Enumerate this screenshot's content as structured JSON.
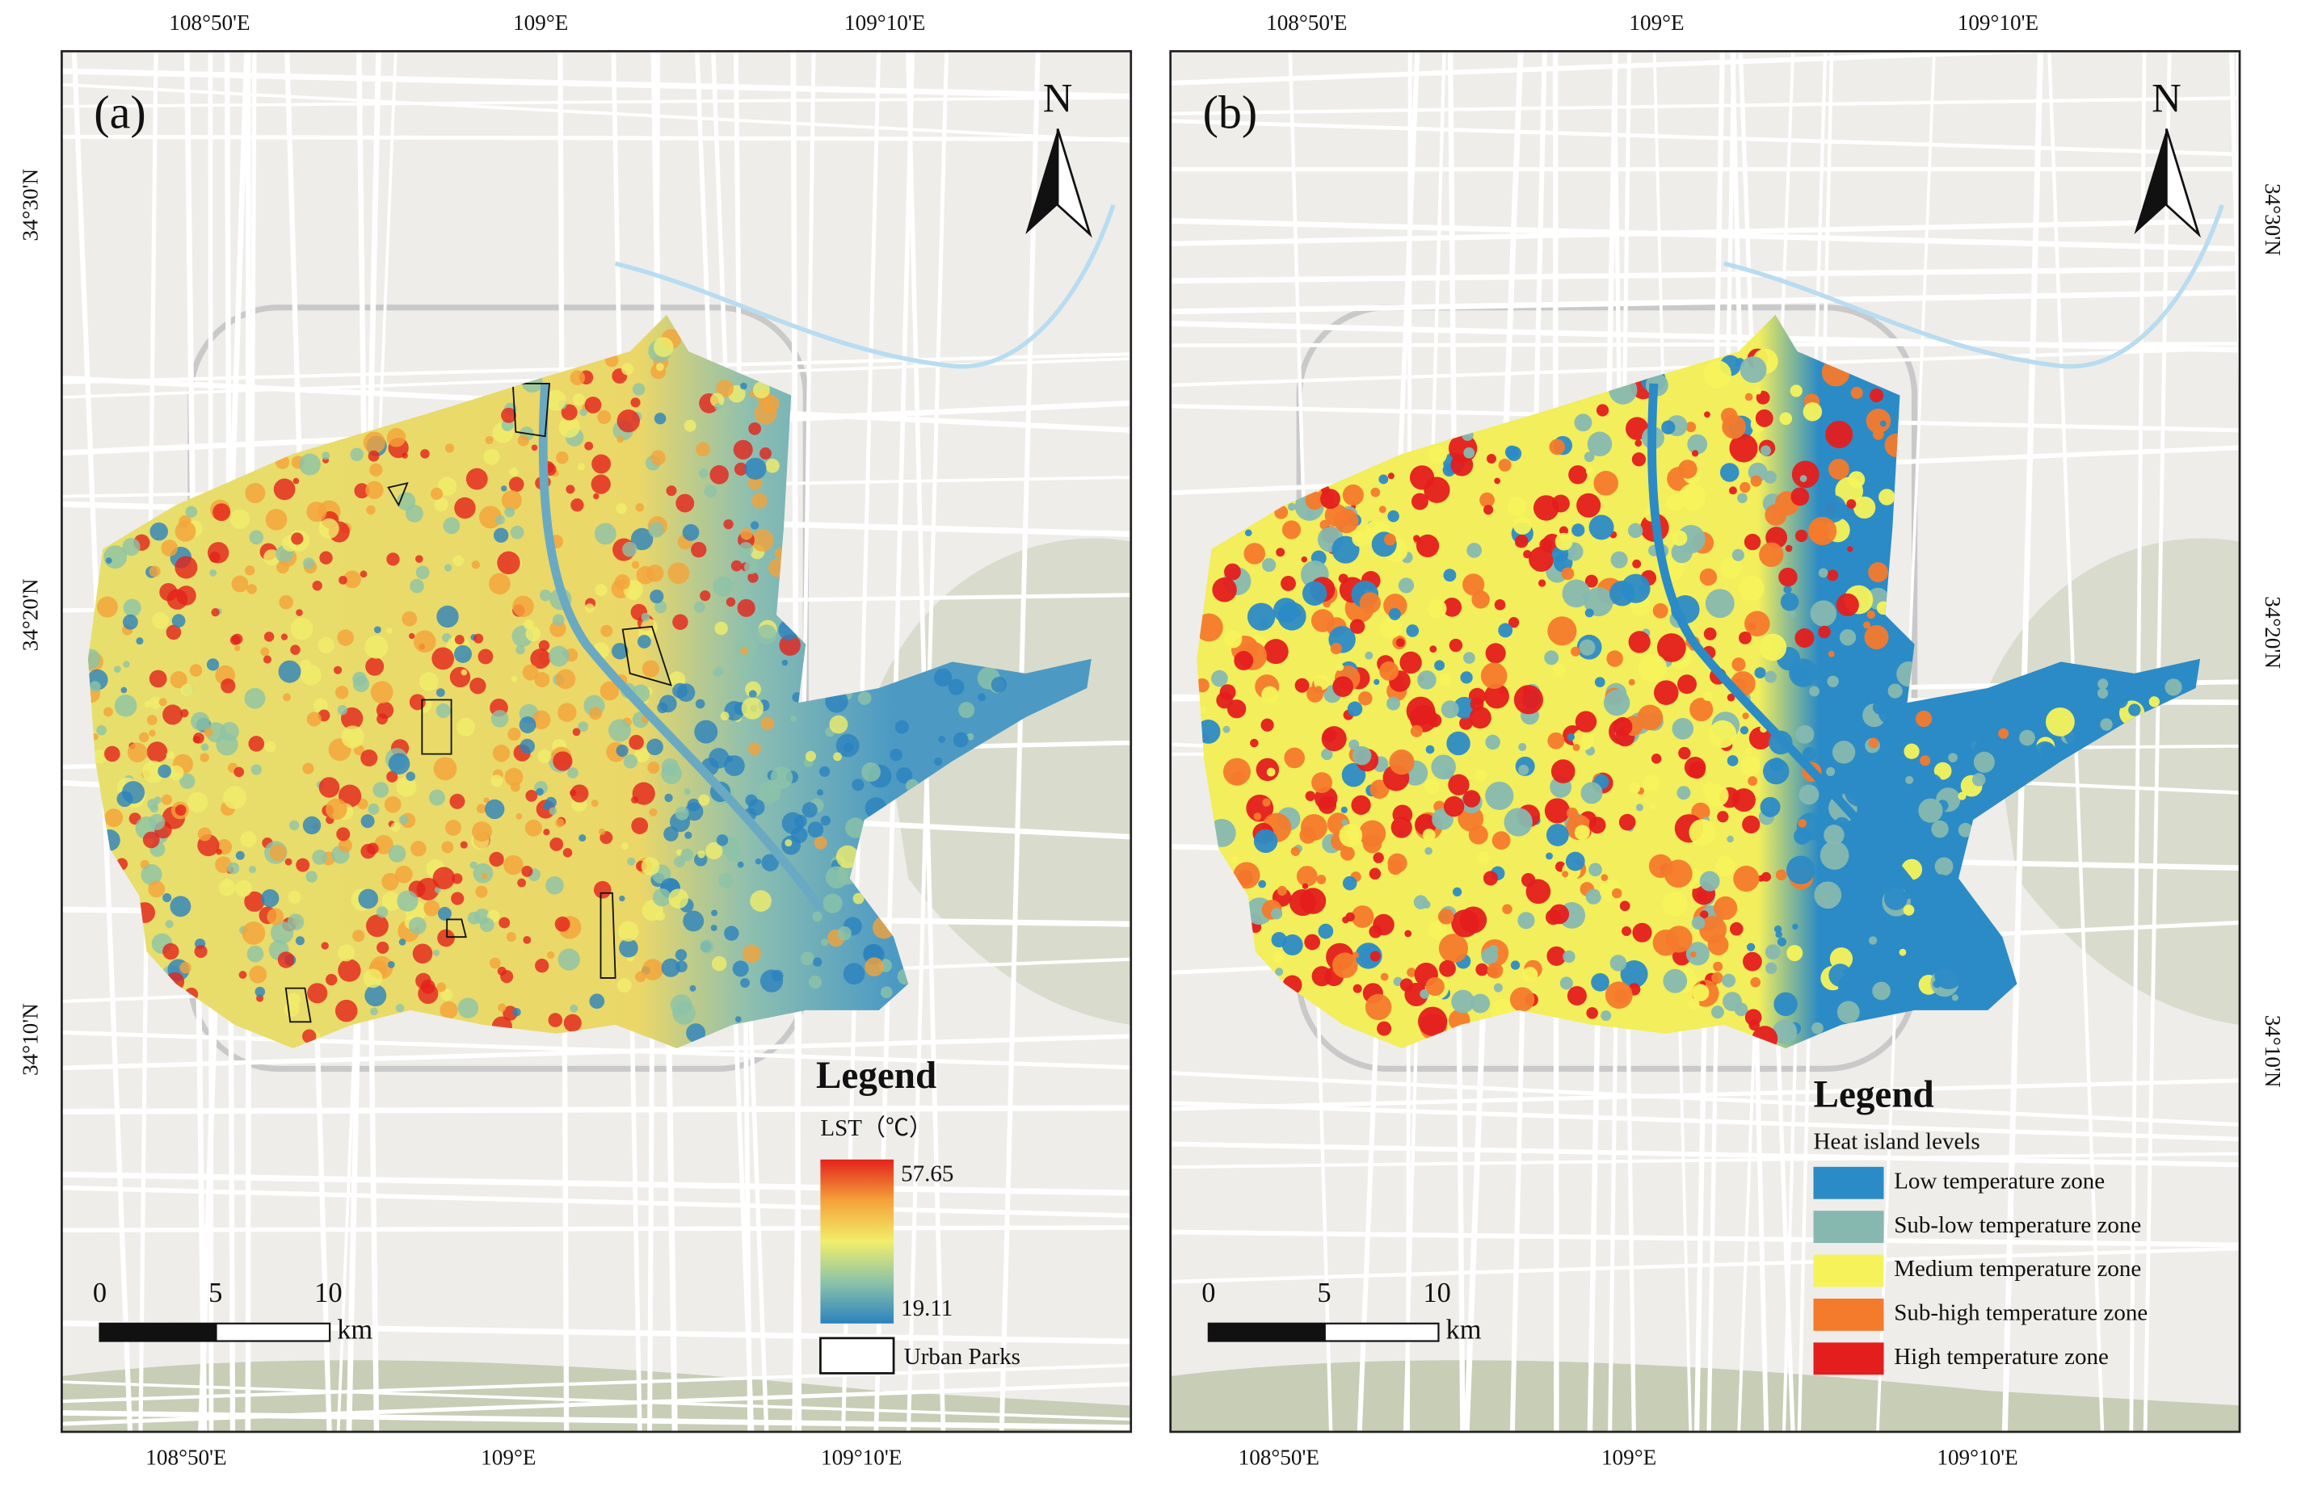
{
  "panels": [
    {
      "label": "(a)",
      "top_labels": [
        "108°50'E",
        "109°E",
        "109°10'E"
      ],
      "bottom_labels": [
        "108°50'E",
        "109°E",
        "109°10'E"
      ],
      "side_labels": [
        "34°30'N",
        "34°20'N",
        "34°10'N"
      ],
      "north": "N",
      "scale": {
        "ticks": [
          0,
          5,
          10
        ],
        "unit": "km"
      },
      "legend": {
        "title": "Legend",
        "subtitle": "LST（℃）",
        "max": 57.65,
        "min": 19.11,
        "parks": "Urban Parks"
      }
    },
    {
      "label": "(b)",
      "top_labels": [
        "108°50'E",
        "109°E",
        "109°10'E"
      ],
      "bottom_labels": [
        "108°50'E",
        "109°E",
        "109°10'E"
      ],
      "side_labels": [
        "34°30'N",
        "34°20'N",
        "34°10'N"
      ],
      "north": "N",
      "scale": {
        "ticks": [
          0,
          5,
          10
        ],
        "unit": "km"
      },
      "legend": {
        "title": "Legend",
        "subtitle": "Heat island levels",
        "items": [
          {
            "label": "Low temperature zone",
            "color": "#2b8bc6"
          },
          {
            "label": "Sub-low temperature zone",
            "color": "#86b8b0"
          },
          {
            "label": "Medium temperature zone",
            "color": "#f6f35a"
          },
          {
            "label": "Sub-high temperature zone",
            "color": "#f47a2c"
          },
          {
            "label": "High temperature zone",
            "color": "#e41d1d"
          }
        ]
      }
    }
  ]
}
